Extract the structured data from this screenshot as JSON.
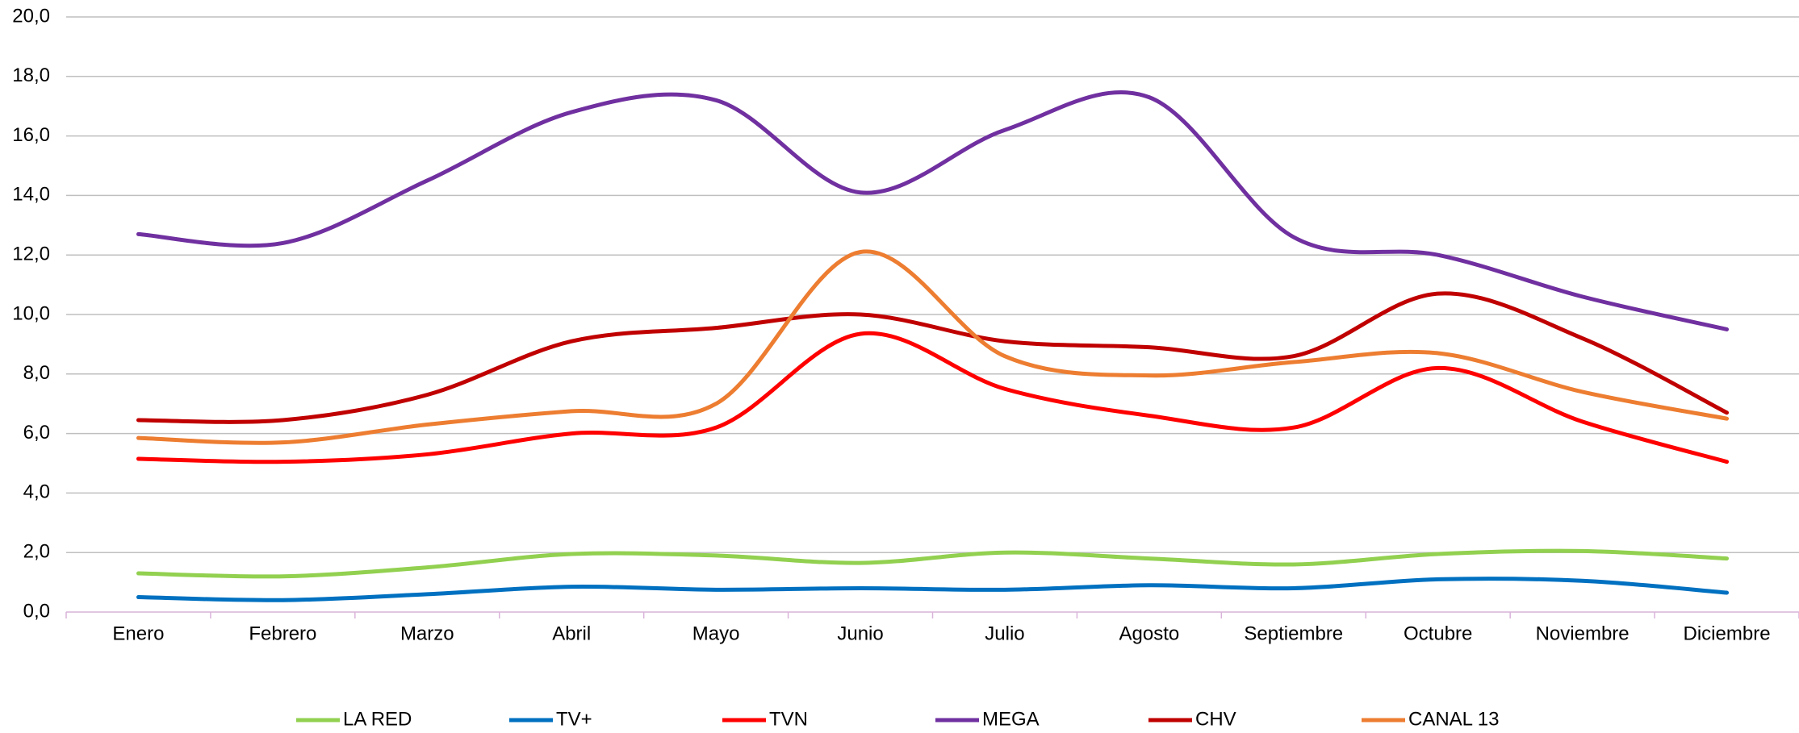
{
  "chart_data": {
    "type": "line",
    "categories": [
      "Enero",
      "Febrero",
      "Marzo",
      "Abril",
      "Mayo",
      "Junio",
      "Julio",
      "Agosto",
      "Septiembre",
      "Octubre",
      "Noviembre",
      "Diciembre"
    ],
    "series": [
      {
        "name": "LA RED",
        "color": "#92d050",
        "values": [
          1.3,
          1.2,
          1.5,
          1.95,
          1.9,
          1.65,
          2.0,
          1.8,
          1.6,
          1.95,
          2.05,
          1.8
        ]
      },
      {
        "name": "TV+",
        "color": "#0070c0",
        "values": [
          0.5,
          0.4,
          0.6,
          0.85,
          0.75,
          0.8,
          0.75,
          0.9,
          0.8,
          1.1,
          1.05,
          0.65
        ]
      },
      {
        "name": "TVN",
        "color": "#ff0000",
        "values": [
          5.15,
          5.05,
          5.3,
          6.0,
          6.2,
          9.35,
          7.5,
          6.6,
          6.2,
          8.2,
          6.4,
          5.05
        ]
      },
      {
        "name": "MEGA",
        "color": "#7030a0",
        "values": [
          12.7,
          12.4,
          14.5,
          16.8,
          17.2,
          14.1,
          16.2,
          17.3,
          12.6,
          12.0,
          10.6,
          9.5
        ]
      },
      {
        "name": "CHV",
        "color": "#c00000",
        "values": [
          6.45,
          6.45,
          7.3,
          9.1,
          9.55,
          10.0,
          9.1,
          8.9,
          8.6,
          10.7,
          9.2,
          6.7
        ]
      },
      {
        "name": "CANAL 13",
        "color": "#ed7d31",
        "values": [
          5.85,
          5.7,
          6.3,
          6.75,
          7.0,
          12.1,
          8.6,
          7.95,
          8.4,
          8.7,
          7.4,
          6.5
        ]
      }
    ],
    "ylim": [
      0,
      20
    ],
    "yticks": [
      {
        "value": 0,
        "label": "0,0"
      },
      {
        "value": 2,
        "label": "2,0"
      },
      {
        "value": 4,
        "label": "4,0"
      },
      {
        "value": 6,
        "label": "6,0"
      },
      {
        "value": 8,
        "label": "8,0"
      },
      {
        "value": 10,
        "label": "10,0"
      },
      {
        "value": 12,
        "label": "12,0"
      },
      {
        "value": 14,
        "label": "14,0"
      },
      {
        "value": 16,
        "label": "16,0"
      },
      {
        "value": 18,
        "label": "18,0"
      },
      {
        "value": 20,
        "label": "20,0"
      }
    ],
    "grid": true,
    "smooth": true,
    "legend": "bottom"
  }
}
